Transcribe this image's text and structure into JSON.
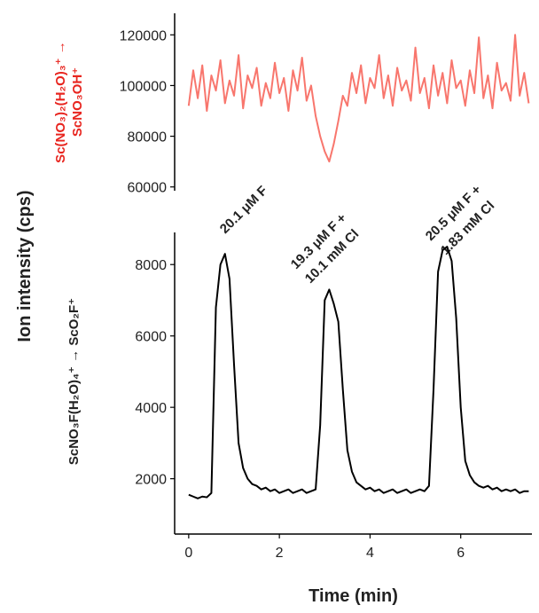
{
  "shared_ylabel": "Ion intensity (cps)",
  "chart_data": [
    {
      "type": "line",
      "ylabel": [
        "Sc(NO₃)₂(H₂O)₃⁺ →",
        "ScNO₃OH⁺"
      ],
      "ylabel_color": "#e8251f",
      "xlim": [
        -0.31,
        7.57
      ],
      "ylim": [
        58500,
        128500
      ],
      "yticks": [
        60000,
        80000,
        100000,
        120000
      ],
      "x": [
        0.0,
        0.1,
        0.2,
        0.3,
        0.4,
        0.5,
        0.6,
        0.7,
        0.8,
        0.9,
        1.0,
        1.1,
        1.2,
        1.3,
        1.4,
        1.5,
        1.6,
        1.7,
        1.8,
        1.9,
        2.0,
        2.1,
        2.2,
        2.3,
        2.4,
        2.5,
        2.6,
        2.7,
        2.8,
        2.9,
        3.0,
        3.1,
        3.2,
        3.3,
        3.4,
        3.5,
        3.6,
        3.7,
        3.8,
        3.9,
        4.0,
        4.1,
        4.2,
        4.3,
        4.4,
        4.5,
        4.6,
        4.7,
        4.8,
        4.9,
        5.0,
        5.1,
        5.2,
        5.3,
        5.4,
        5.5,
        5.6,
        5.7,
        5.8,
        5.9,
        6.0,
        6.1,
        6.2,
        6.3,
        6.4,
        6.5,
        6.6,
        6.7,
        6.8,
        6.9,
        7.0,
        7.1,
        7.2,
        7.3,
        7.4,
        7.5
      ],
      "series": [
        {
          "color": "#f8766d",
          "values": [
            92000,
            106000,
            95000,
            108000,
            90000,
            104000,
            98000,
            110000,
            93000,
            102000,
            96000,
            112000,
            91000,
            104000,
            99000,
            107000,
            92000,
            101000,
            95000,
            109000,
            97000,
            103000,
            90000,
            106000,
            98000,
            111000,
            94000,
            100000,
            88000,
            80000,
            74000,
            70000,
            77000,
            86000,
            96000,
            92000,
            105000,
            97000,
            108000,
            93000,
            103000,
            99000,
            112000,
            95000,
            104000,
            92000,
            107000,
            98000,
            102000,
            94000,
            115000,
            97000,
            103000,
            91000,
            108000,
            96000,
            105000,
            93000,
            110000,
            99000,
            102000,
            92000,
            106000,
            97000,
            119000,
            95000,
            104000,
            91000,
            109000,
            98000,
            101000,
            94000,
            120000,
            96000,
            105000,
            93000
          ]
        }
      ]
    },
    {
      "type": "line",
      "ylabel": "ScNO₃F(H₂O)₄⁺ → ScO₂F⁺",
      "xlabel": "Time (min)",
      "xlim": [
        -0.31,
        7.57
      ],
      "xticks": [
        0,
        2,
        4,
        6
      ],
      "ylim": [
        450,
        8900
      ],
      "yticks": [
        2000,
        4000,
        6000,
        8000
      ],
      "annotations": [
        [
          "20.1 μM F"
        ],
        [
          "19.3 μM F +",
          "10.1 mM Cl"
        ],
        [
          "20.5 μM F +",
          "1.83 mM Cl"
        ]
      ],
      "x": [
        0.0,
        0.1,
        0.2,
        0.3,
        0.4,
        0.5,
        0.6,
        0.7,
        0.8,
        0.9,
        1.0,
        1.1,
        1.2,
        1.3,
        1.4,
        1.5,
        1.6,
        1.7,
        1.8,
        1.9,
        2.0,
        2.1,
        2.2,
        2.3,
        2.4,
        2.5,
        2.6,
        2.7,
        2.8,
        2.9,
        3.0,
        3.1,
        3.2,
        3.3,
        3.4,
        3.5,
        3.6,
        3.7,
        3.8,
        3.9,
        4.0,
        4.1,
        4.2,
        4.3,
        4.4,
        4.5,
        4.6,
        4.7,
        4.8,
        4.9,
        5.0,
        5.1,
        5.2,
        5.3,
        5.4,
        5.5,
        5.6,
        5.7,
        5.8,
        5.9,
        6.0,
        6.1,
        6.2,
        6.3,
        6.4,
        6.5,
        6.6,
        6.7,
        6.8,
        6.9,
        7.0,
        7.1,
        7.2,
        7.3,
        7.4,
        7.5
      ],
      "series": [
        {
          "color": "#000000",
          "values": [
            1550,
            1500,
            1450,
            1500,
            1480,
            1600,
            6800,
            8000,
            8300,
            7600,
            5200,
            3000,
            2300,
            2000,
            1850,
            1800,
            1700,
            1750,
            1650,
            1700,
            1600,
            1650,
            1700,
            1600,
            1650,
            1700,
            1600,
            1650,
            1700,
            3500,
            7000,
            7300,
            6900,
            6400,
            4500,
            2800,
            2200,
            1900,
            1800,
            1700,
            1750,
            1650,
            1700,
            1600,
            1650,
            1700,
            1600,
            1650,
            1700,
            1600,
            1650,
            1700,
            1650,
            1800,
            4500,
            7800,
            8400,
            8500,
            8100,
            6500,
            4000,
            2500,
            2100,
            1900,
            1800,
            1750,
            1800,
            1700,
            1750,
            1650,
            1700,
            1650,
            1700,
            1600,
            1650,
            1650
          ]
        }
      ]
    }
  ]
}
